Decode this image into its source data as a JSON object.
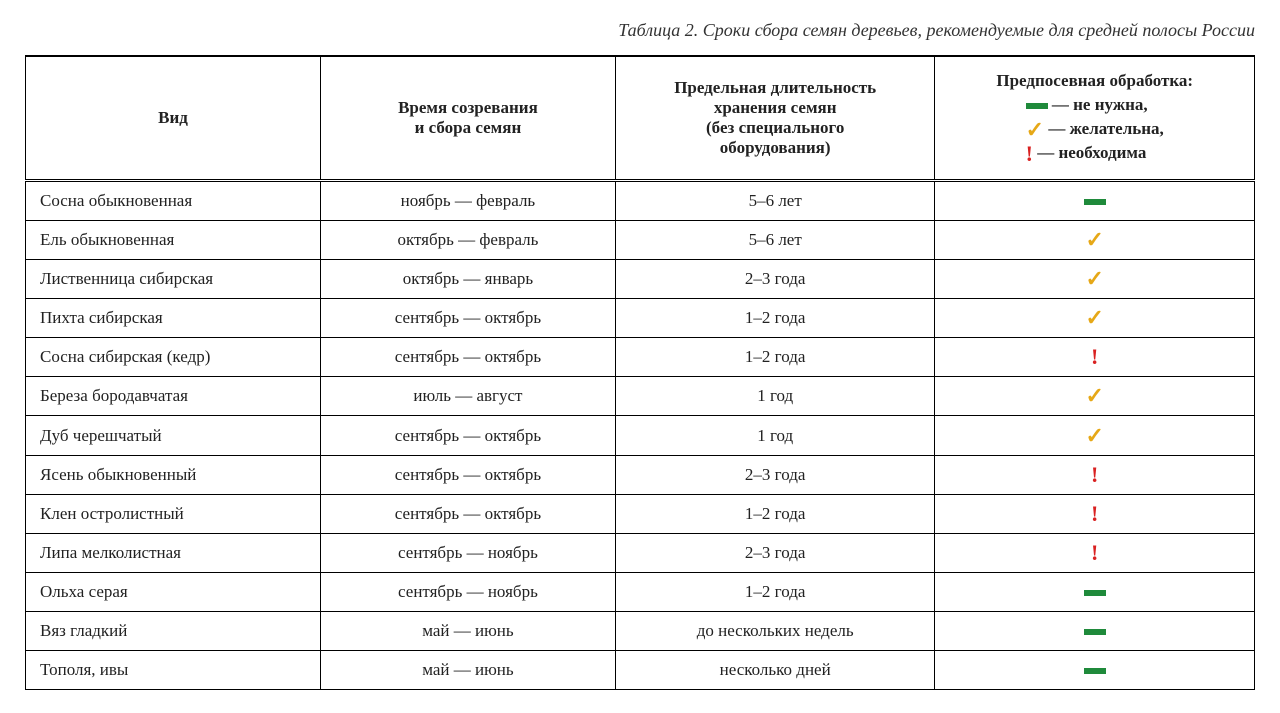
{
  "caption": "Таблица 2. Сроки сбора семян деревьев, рекомендуемые для средней полосы России",
  "columns": {
    "species": "Вид",
    "time": "Время созревания\nи сбора семян",
    "storage": "Предельная длительность\nхранения семян\n(без специального\nоборудования)",
    "treatment_title": "Предпосевная обработка:",
    "legend_dash": "— не нужна,",
    "legend_check": "— желательна,",
    "legend_excl": "— необходима"
  },
  "icons": {
    "dash_color": "#1f8a3b",
    "check_color": "#e6a817",
    "excl_color": "#d92121"
  },
  "rows": [
    {
      "species": "Сосна обыкновенная",
      "time": "ноябрь — февраль",
      "storage": "5–6 лет",
      "treatment": "dash"
    },
    {
      "species": "Ель обыкновенная",
      "time": "октябрь — февраль",
      "storage": "5–6 лет",
      "treatment": "check"
    },
    {
      "species": "Лиственница сибирская",
      "time": "октябрь — январь",
      "storage": "2–3 года",
      "treatment": "check"
    },
    {
      "species": "Пихта сибирская",
      "time": "сентябрь — октябрь",
      "storage": "1–2 года",
      "treatment": "check"
    },
    {
      "species": "Сосна сибирская (кедр)",
      "time": "сентябрь — октябрь",
      "storage": "1–2 года",
      "treatment": "excl"
    },
    {
      "species": "Береза бородавчатая",
      "time": "июль — август",
      "storage": "1 год",
      "treatment": "check"
    },
    {
      "species": "Дуб черешчатый",
      "time": "сентябрь — октябрь",
      "storage": "1 год",
      "treatment": "check"
    },
    {
      "species": "Ясень обыкновенный",
      "time": "сентябрь — октябрь",
      "storage": "2–3 года",
      "treatment": "excl"
    },
    {
      "species": "Клен остролистный",
      "time": "сентябрь — октябрь",
      "storage": "1–2 года",
      "treatment": "excl"
    },
    {
      "species": "Липа мелколистная",
      "time": "сентябрь — ноябрь",
      "storage": "2–3 года",
      "treatment": "excl"
    },
    {
      "species": "Ольха серая",
      "time": "сентябрь — ноябрь",
      "storage": "1–2 года",
      "treatment": "dash"
    },
    {
      "species": "Вяз гладкий",
      "time": "май — июнь",
      "storage": "до нескольких недель",
      "treatment": "dash"
    },
    {
      "species": "Тополя, ивы",
      "time": "май — июнь",
      "storage": "несколько дней",
      "treatment": "dash"
    }
  ]
}
